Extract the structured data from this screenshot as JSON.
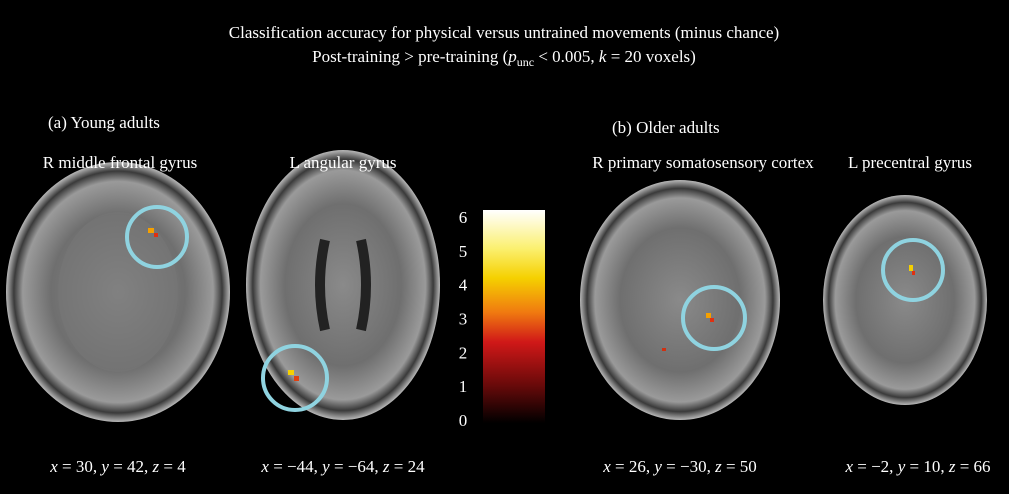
{
  "title": "Classification accuracy for physical versus untrained movements (minus chance)",
  "subtitle": [
    "Post-training > pre-training (",
    "p",
    "unc",
    " < 0.005, ",
    "k",
    " = 20 voxels)"
  ],
  "panels": [
    {
      "label": "(a) Young adults",
      "regions": [
        {
          "name": "R middle frontal gyrus",
          "coords": [
            "x",
            " = 30, ",
            "y",
            " = 42, ",
            "z",
            " = 4"
          ]
        },
        {
          "name": "L angular gyrus",
          "coords": [
            "x",
            " = −44, ",
            "y",
            " = −64, ",
            "z",
            " = 24"
          ]
        }
      ]
    },
    {
      "label": "(b) Older adults",
      "regions": [
        {
          "name": "R primary somatosensory cortex",
          "coords": [
            "x",
            " = 26, ",
            "y",
            " = −30, ",
            "z",
            " = 50"
          ]
        },
        {
          "name": "L precentral gyrus",
          "coords": [
            "x",
            " = −2, ",
            "y",
            " = 10, ",
            "z",
            " = 66"
          ]
        }
      ]
    }
  ],
  "colorbar": {
    "ticks": [
      0,
      1,
      2,
      3,
      4,
      5,
      6
    ]
  }
}
